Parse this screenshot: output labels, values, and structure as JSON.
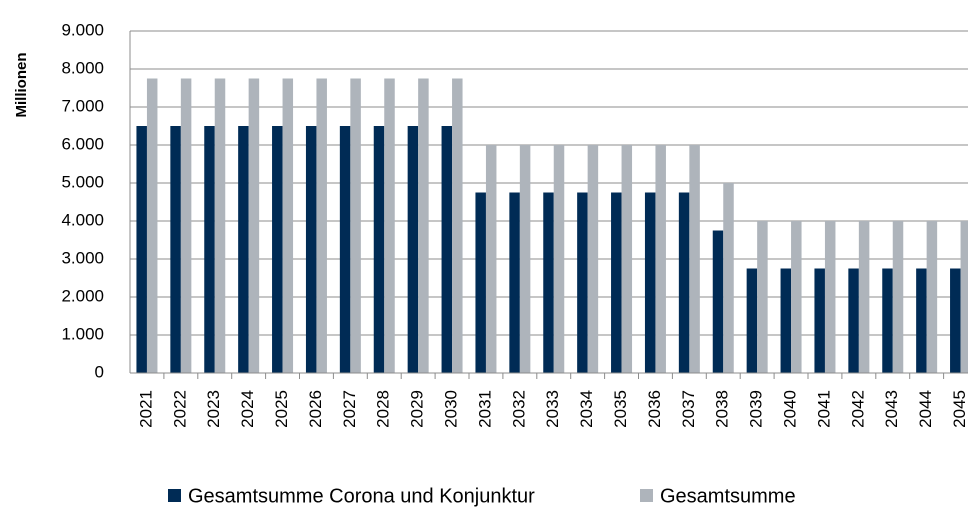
{
  "chart_data": {
    "type": "bar",
    "y_label": "Millionen",
    "categories": [
      "2021",
      "2022",
      "2023",
      "2024",
      "2025",
      "2026",
      "2027",
      "2028",
      "2029",
      "2030",
      "2031",
      "2032",
      "2033",
      "2034",
      "2035",
      "2036",
      "2037",
      "2038",
      "2039",
      "2040",
      "2041",
      "2042",
      "2043",
      "2044",
      "2045"
    ],
    "series": [
      {
        "name": "Gesamtsumme Corona und Konjunktur",
        "color": "#002b55",
        "values": [
          6500,
          6500,
          6500,
          6500,
          6500,
          6500,
          6500,
          6500,
          6500,
          6500,
          4750,
          4750,
          4750,
          4750,
          4750,
          4750,
          4750,
          3750,
          2750,
          2750,
          2750,
          2750,
          2750,
          2750,
          2750
        ]
      },
      {
        "name": "Gesamtsumme",
        "color": "#aeb4bb",
        "values": [
          7750,
          7750,
          7750,
          7750,
          7750,
          7750,
          7750,
          7750,
          7750,
          7750,
          6000,
          6000,
          6000,
          6000,
          6000,
          6000,
          6000,
          5000,
          4000,
          4000,
          4000,
          4000,
          4000,
          4000,
          4000
        ]
      }
    ],
    "ylim": [
      0,
      9000
    ],
    "yticks": [
      0,
      {
        "value": 1000,
        "label": "1.000"
      },
      {
        "value": 2000,
        "label": "2.000"
      },
      {
        "value": 3000,
        "label": "3.000"
      },
      {
        "value": 4000,
        "label": "4.000"
      },
      {
        "value": 5000,
        "label": "5.000"
      },
      {
        "value": 6000,
        "label": "6.000"
      },
      {
        "value": 7000,
        "label": "7.000"
      },
      {
        "value": 8000,
        "label": "8.000"
      },
      {
        "value": 9000,
        "label": "9.000"
      }
    ],
    "grid": true
  }
}
